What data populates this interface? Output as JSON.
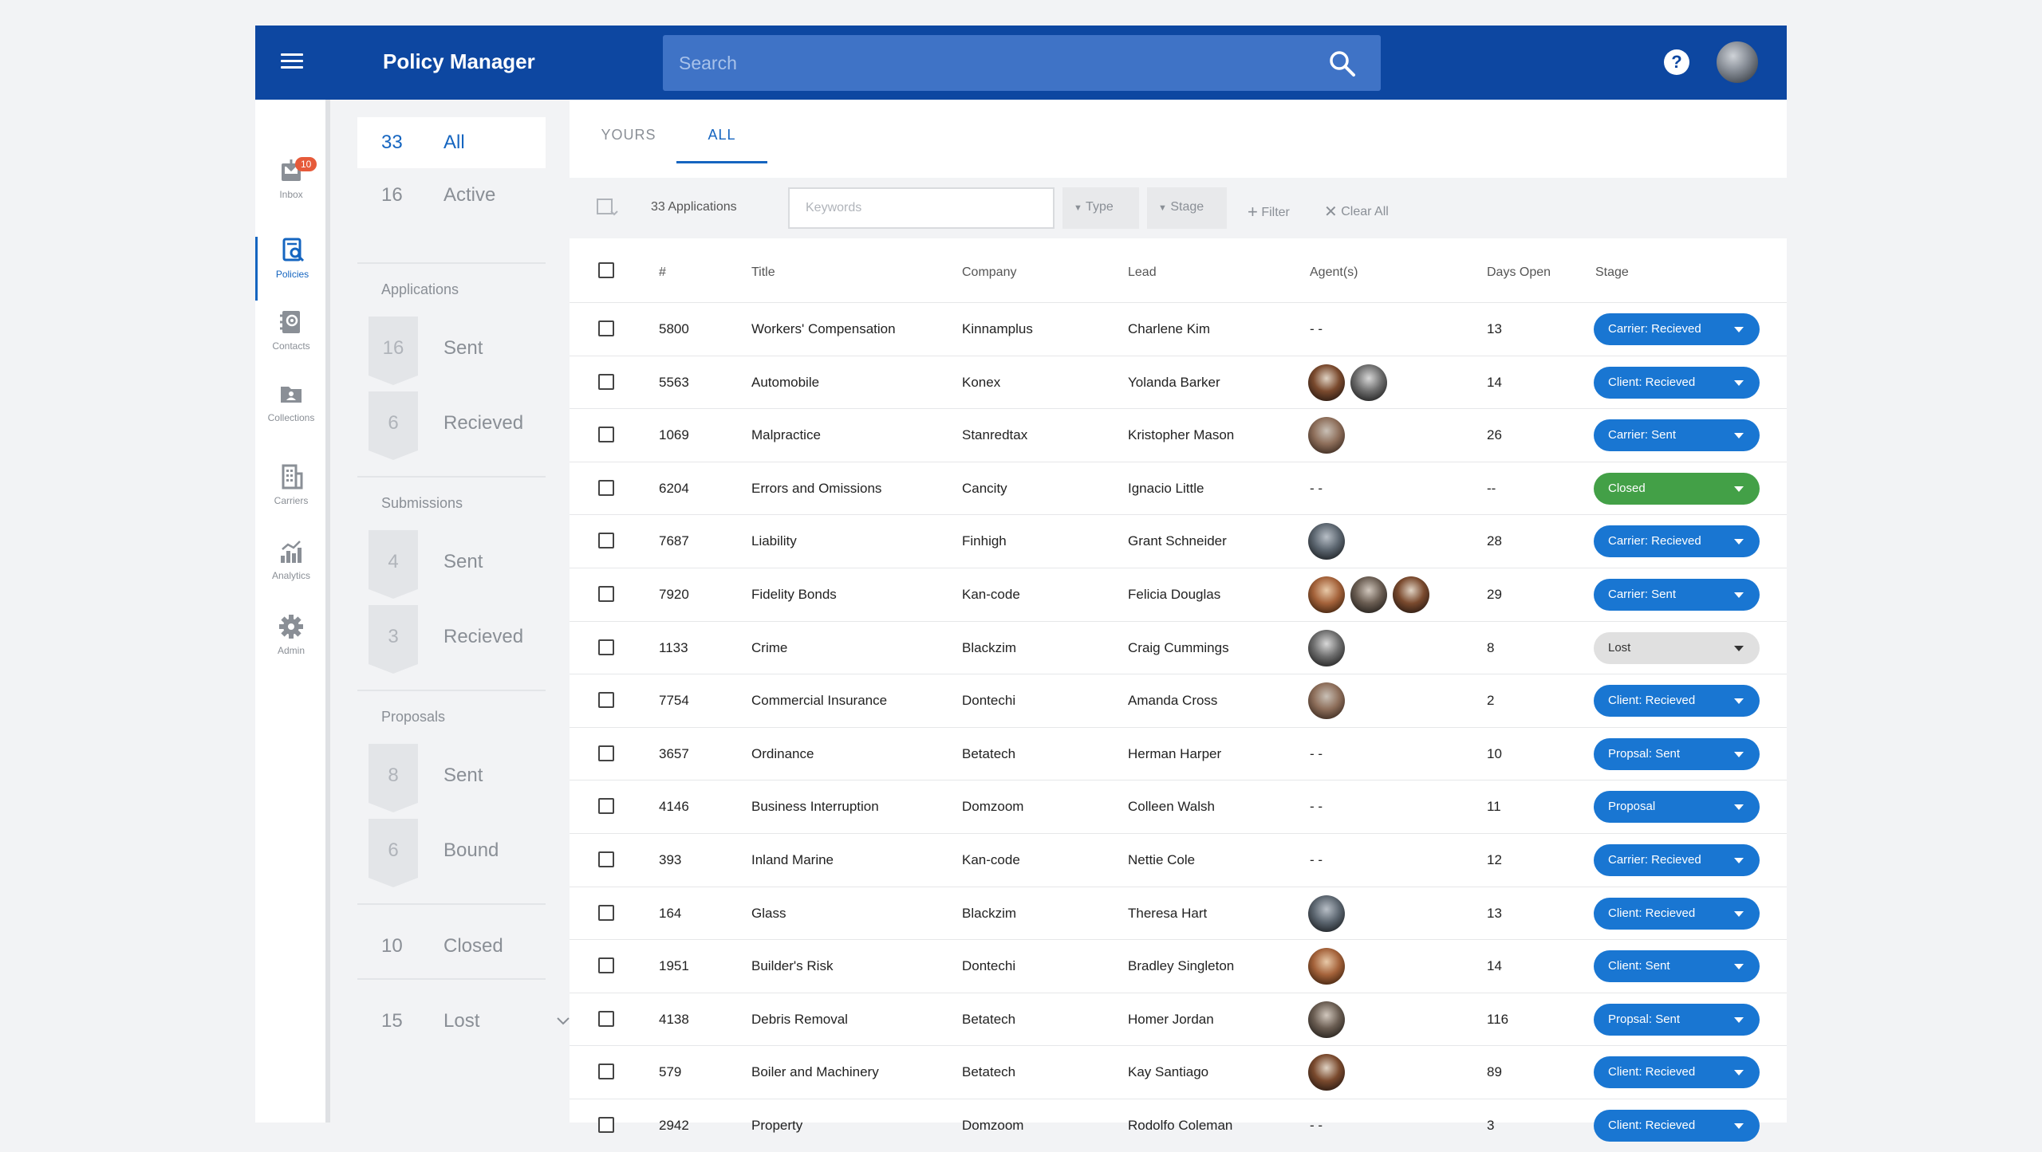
{
  "header": {
    "title": "Policy Manager",
    "search_placeholder": "Search",
    "help_label": "?"
  },
  "nav": {
    "items": [
      {
        "label": "Inbox",
        "icon": "inbox-icon",
        "badge": "10"
      },
      {
        "label": "Policies",
        "icon": "policies-icon"
      },
      {
        "label": "Contacts",
        "icon": "contacts-icon"
      },
      {
        "label": "Collections",
        "icon": "collections-icon"
      },
      {
        "label": "Carriers",
        "icon": "carriers-icon"
      },
      {
        "label": "Analytics",
        "icon": "analytics-icon"
      },
      {
        "label": "Admin",
        "icon": "gear-icon"
      }
    ]
  },
  "panel": {
    "all": {
      "count": "33",
      "label": "All"
    },
    "active": {
      "count": "16",
      "label": "Active"
    },
    "applications": {
      "label": "Applications",
      "sent": {
        "count": "16",
        "label": "Sent"
      },
      "received": {
        "count": "6",
        "label": "Recieved"
      }
    },
    "submissions": {
      "label": "Submissions",
      "sent": {
        "count": "4",
        "label": "Sent"
      },
      "received": {
        "count": "3",
        "label": "Recieved"
      }
    },
    "proposals": {
      "label": "Proposals",
      "sent": {
        "count": "8",
        "label": "Sent"
      },
      "bound": {
        "count": "6",
        "label": "Bound"
      }
    },
    "closed": {
      "count": "10",
      "label": "Closed"
    },
    "lost": {
      "count": "15",
      "label": "Lost"
    }
  },
  "tabs": {
    "yours": "YOURS",
    "all": "ALL"
  },
  "toolbar": {
    "count_label": "33 Applications",
    "keyword_placeholder": "Keywords",
    "type_label": "Type",
    "stage_label": "Stage",
    "filter_label": "Filter",
    "clear_label": "Clear All"
  },
  "table": {
    "headers": {
      "num": "#",
      "title": "Title",
      "company": "Company",
      "lead": "Lead",
      "agents": "Agent(s)",
      "days": "Days Open",
      "stage": "Stage"
    },
    "rows": [
      {
        "num": "5800",
        "title": "Workers' Compensation",
        "company": "Kinnamplus",
        "lead": "Charlene Kim",
        "agents_text": "- -",
        "agents": 0,
        "days": "13",
        "stage": "Carrier: Recieved"
      },
      {
        "num": "5563",
        "title": "Automobile",
        "company": "Konex",
        "lead": "Yolanda Barker",
        "agents_text": "",
        "agents": 2,
        "days": "14",
        "stage": "Client: Recieved"
      },
      {
        "num": "1069",
        "title": "Malpractice",
        "company": "Stanredtax",
        "lead": "Kristopher Mason",
        "agents_text": "",
        "agents": 1,
        "days": "26",
        "stage": "Carrier: Sent"
      },
      {
        "num": "6204",
        "title": "Errors and Omissions",
        "company": "Cancity",
        "lead": "Ignacio Little",
        "agents_text": "- -",
        "agents": 0,
        "days": "--",
        "stage": "Closed"
      },
      {
        "num": "7687",
        "title": "Liability",
        "company": "Finhigh",
        "lead": "Grant Schneider",
        "agents_text": "",
        "agents": 1,
        "days": "28",
        "stage": "Carrier: Recieved"
      },
      {
        "num": "7920",
        "title": "Fidelity Bonds",
        "company": "Kan-code",
        "lead": "Felicia Douglas",
        "agents_text": "",
        "agents": 3,
        "days": "29",
        "stage": "Carrier: Sent"
      },
      {
        "num": "1133",
        "title": "Crime",
        "company": "Blackzim",
        "lead": "Craig Cummings",
        "agents_text": "",
        "agents": 1,
        "days": "8",
        "stage": "Lost"
      },
      {
        "num": "7754",
        "title": "Commercial Insurance",
        "company": "Dontechi",
        "lead": "Amanda Cross",
        "agents_text": "",
        "agents": 1,
        "days": "2",
        "stage": "Client: Recieved"
      },
      {
        "num": "3657",
        "title": "Ordinance",
        "company": "Betatech",
        "lead": "Herman Harper",
        "agents_text": "- -",
        "agents": 0,
        "days": "10",
        "stage": "Propsal: Sent"
      },
      {
        "num": "4146",
        "title": "Business Interruption",
        "company": "Domzoom",
        "lead": "Colleen Walsh",
        "agents_text": "- -",
        "agents": 0,
        "days": "11",
        "stage": "Proposal"
      },
      {
        "num": "393",
        "title": "Inland Marine",
        "company": "Kan-code",
        "lead": "Nettie Cole",
        "agents_text": "- -",
        "agents": 0,
        "days": "12",
        "stage": "Carrier: Recieved"
      },
      {
        "num": "164",
        "title": "Glass",
        "company": "Blackzim",
        "lead": "Theresa Hart",
        "agents_text": "",
        "agents": 1,
        "days": "13",
        "stage": "Client: Recieved"
      },
      {
        "num": "1951",
        "title": "Builder's Risk",
        "company": "Dontechi",
        "lead": "Bradley Singleton",
        "agents_text": "",
        "agents": 1,
        "days": "14",
        "stage": "Client: Sent"
      },
      {
        "num": "4138",
        "title": "Debris Removal",
        "company": "Betatech",
        "lead": "Homer Jordan",
        "agents_text": "",
        "agents": 1,
        "days": "116",
        "stage": "Propsal: Sent"
      },
      {
        "num": "579",
        "title": "Boiler and Machinery",
        "company": "Betatech",
        "lead": "Kay Santiago",
        "agents_text": "",
        "agents": 1,
        "days": "89",
        "stage": "Client: Recieved"
      },
      {
        "num": "2942",
        "title": "Property",
        "company": "Domzoom",
        "lead": "Rodolfo Coleman",
        "agents_text": "- -",
        "agents": 0,
        "days": "3",
        "stage": "Client: Recieved"
      }
    ]
  },
  "colors": {
    "primary": "#0d47a1",
    "accent": "#1565c0",
    "pill_blue": "#1976d2",
    "pill_green": "#43a047",
    "pill_grey": "#e0e0e0"
  }
}
